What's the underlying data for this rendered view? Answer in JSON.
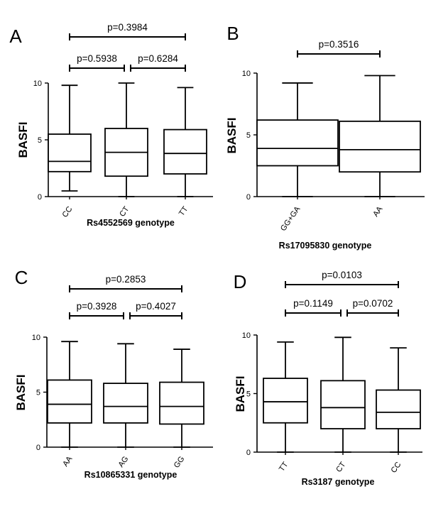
{
  "chart_data": [
    {
      "panel": "A",
      "type": "boxplot",
      "xlabel": "Rs4552569 genotype",
      "ylabel": "BASFI",
      "ylim": [
        0,
        10
      ],
      "yticks": [
        "0",
        "5",
        "10"
      ],
      "categories": [
        "CC",
        "CT",
        "TT"
      ],
      "boxes": [
        {
          "min": 0.5,
          "q1": 2.2,
          "median": 3.1,
          "q3": 5.5,
          "max": 9.8
        },
        {
          "min": 0.0,
          "q1": 1.8,
          "median": 3.9,
          "q3": 6.0,
          "max": 10.0
        },
        {
          "min": 0.0,
          "q1": 2.0,
          "median": 3.8,
          "q3": 5.9,
          "max": 9.6
        }
      ],
      "comparisons": [
        {
          "from": 0,
          "to": 2,
          "text": "p=0.3984",
          "level": 2
        },
        {
          "from": 0,
          "to": 1,
          "text": "p=0.5938",
          "level": 1
        },
        {
          "from": 1,
          "to": 2,
          "text": "p=0.6284",
          "level": 1
        }
      ]
    },
    {
      "panel": "B",
      "type": "boxplot",
      "xlabel": "Rs17095830 genotype",
      "ylabel": "BASFI",
      "ylim": [
        0,
        10
      ],
      "yticks": [
        "0",
        "5",
        "10"
      ],
      "categories": [
        "GG+GA",
        "AA"
      ],
      "boxes": [
        {
          "min": 0.0,
          "q1": 2.5,
          "median": 3.9,
          "q3": 6.2,
          "max": 9.2
        },
        {
          "min": 0.0,
          "q1": 2.0,
          "median": 3.8,
          "q3": 6.1,
          "max": 9.8
        }
      ],
      "comparisons": [
        {
          "from": 0,
          "to": 1,
          "text": "p=0.3516",
          "level": 1
        }
      ]
    },
    {
      "panel": "C",
      "type": "boxplot",
      "xlabel": "Rs10865331 genotype",
      "ylabel": "BASFI",
      "ylim": [
        0,
        10
      ],
      "yticks": [
        "0",
        "5",
        "10"
      ],
      "categories": [
        "AA",
        "AG",
        "GG"
      ],
      "boxes": [
        {
          "min": 0.0,
          "q1": 2.2,
          "median": 3.9,
          "q3": 6.1,
          "max": 9.6
        },
        {
          "min": 0.0,
          "q1": 2.2,
          "median": 3.7,
          "q3": 5.8,
          "max": 9.4
        },
        {
          "min": 0.0,
          "q1": 2.1,
          "median": 3.7,
          "q3": 5.9,
          "max": 8.9
        }
      ],
      "comparisons": [
        {
          "from": 0,
          "to": 2,
          "text": "p=0.2853",
          "level": 2
        },
        {
          "from": 0,
          "to": 1,
          "text": "p=0.3928",
          "level": 1
        },
        {
          "from": 1,
          "to": 2,
          "text": "p=0.4027",
          "level": 1
        }
      ]
    },
    {
      "panel": "D",
      "type": "boxplot",
      "xlabel": "Rs3187 genotype",
      "ylabel": "BASFI",
      "ylim": [
        0,
        10
      ],
      "yticks": [
        "0",
        "5",
        "10"
      ],
      "categories": [
        "TT",
        "CT",
        "CC"
      ],
      "boxes": [
        {
          "min": 0.0,
          "q1": 2.5,
          "median": 4.3,
          "q3": 6.3,
          "max": 9.4
        },
        {
          "min": 0.0,
          "q1": 2.0,
          "median": 3.8,
          "q3": 6.1,
          "max": 9.8
        },
        {
          "min": 0.0,
          "q1": 2.0,
          "median": 3.4,
          "q3": 5.3,
          "max": 8.9
        }
      ],
      "comparisons": [
        {
          "from": 0,
          "to": 2,
          "text": "p=0.0103",
          "level": 2
        },
        {
          "from": 0,
          "to": 1,
          "text": "p=0.1149",
          "level": 1
        },
        {
          "from": 1,
          "to": 2,
          "text": "p=0.0702",
          "level": 1
        }
      ]
    }
  ]
}
